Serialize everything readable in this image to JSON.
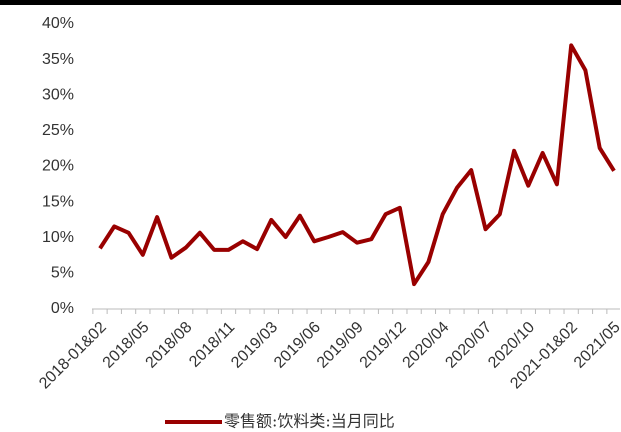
{
  "chart_data": {
    "type": "line",
    "categories": [
      "2018-01&02",
      null,
      null,
      "2018/05",
      null,
      null,
      "2018/08",
      null,
      null,
      "2018/11",
      null,
      null,
      "2019/03",
      null,
      null,
      "2019/06",
      null,
      null,
      "2019/09",
      null,
      null,
      "2019/12",
      null,
      null,
      "2020/04",
      null,
      null,
      "2020/07",
      null,
      null,
      "2020/10",
      null,
      null,
      "2021-01&02",
      null,
      null,
      "2021/05"
    ],
    "series": [
      {
        "name": "零售额:饮料类:当月同比",
        "color": "#990000",
        "values": [
          8.5,
          11.6,
          10.7,
          7.6,
          12.9,
          7.2,
          8.6,
          10.7,
          8.3,
          8.3,
          9.5,
          8.4,
          12.5,
          10.1,
          13.1,
          9.5,
          10.1,
          10.8,
          9.3,
          9.8,
          13.3,
          14.2,
          3.5,
          6.6,
          13.3,
          17.0,
          19.5,
          11.2,
          13.3,
          22.2,
          17.3,
          21.9,
          17.5,
          37.0,
          33.5,
          22.6,
          19.4
        ]
      }
    ],
    "ylim": [
      0,
      40
    ],
    "yticks": [
      {
        "value": 0,
        "label": "0%"
      },
      {
        "value": 5,
        "label": "5%"
      },
      {
        "value": 10,
        "label": "10%"
      },
      {
        "value": 15,
        "label": "15%"
      },
      {
        "value": 20,
        "label": "20%"
      },
      {
        "value": 25,
        "label": "25%"
      },
      {
        "value": 30,
        "label": "30%"
      },
      {
        "value": 35,
        "label": "35%"
      },
      {
        "value": 40,
        "label": "40%"
      }
    ],
    "grid": false,
    "legend": "bottom"
  }
}
